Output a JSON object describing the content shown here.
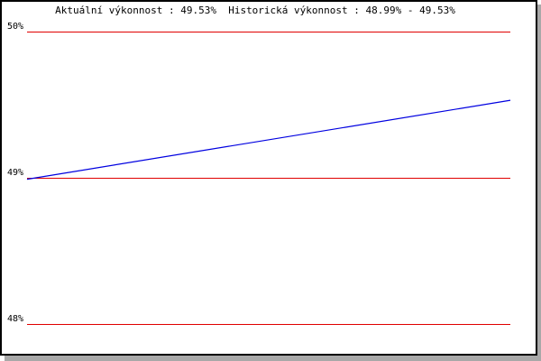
{
  "chart_data": {
    "type": "line",
    "title": "Aktuální výkonnost : 49.53%  Historická výkonnost : 48.99% - 49.53%",
    "xlabel": "",
    "ylabel": "",
    "ylim": [
      48,
      50
    ],
    "yticks": [
      "50%",
      "49%",
      "48%"
    ],
    "ytick_values": [
      50,
      49,
      48
    ],
    "grid": true,
    "series": [
      {
        "values": [
          48.99,
          49.53
        ],
        "color": "#0000e0"
      }
    ],
    "colors": {
      "grid": "#e00000",
      "line": "#0000e0"
    }
  }
}
